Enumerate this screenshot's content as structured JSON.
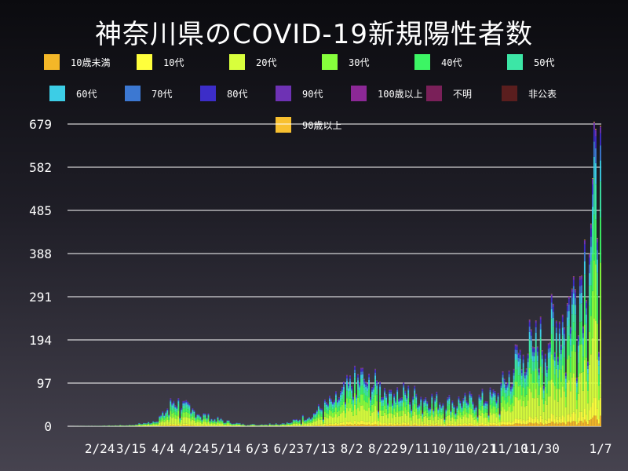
{
  "chart_data": {
    "type": "bar",
    "stacked": true,
    "title": "神奈川県のCOVID-19新規陽性者数",
    "xlabel": "",
    "ylabel": "",
    "ylim": [
      0,
      679
    ],
    "yticks": [
      0,
      97,
      194,
      291,
      388,
      485,
      582,
      679
    ],
    "xtick_labels": [
      "2/24",
      "3/15",
      "4/4",
      "4/24",
      "5/14",
      "6/3",
      "6/23",
      "7/13",
      "8/2",
      "8/22",
      "9/11",
      "10/1",
      "10/21",
      "11/10",
      "11/30",
      "1/7"
    ],
    "date_range": [
      "2020-02-04",
      "2021-01-07"
    ],
    "grid": "horizontal",
    "legend_placement": "top",
    "series": [
      {
        "name": "10歳未満",
        "color": "#f4b728"
      },
      {
        "name": "10代",
        "color": "#ffff3c"
      },
      {
        "name": "20代",
        "color": "#d8ff3c"
      },
      {
        "name": "30代",
        "color": "#86ff3c"
      },
      {
        "name": "40代",
        "color": "#3cf564"
      },
      {
        "name": "50代",
        "color": "#3ce6a6"
      },
      {
        "name": "60代",
        "color": "#3ccde6"
      },
      {
        "name": "70代",
        "color": "#3c78d2"
      },
      {
        "name": "80代",
        "color": "#3c2dc8"
      },
      {
        "name": "90代",
        "color": "#6e32b4"
      },
      {
        "name": "100歳以上",
        "color": "#8c2896"
      },
      {
        "name": "不明",
        "color": "#7a2059"
      },
      {
        "name": "非公表",
        "color": "#5a1e1e"
      },
      {
        "name": "90歳以上",
        "color": "#f8c030"
      }
    ],
    "daily_totals_approx": {
      "note_keys": [
        "date",
        "total"
      ],
      "anchors": [
        [
          "2020-02-04",
          0
        ],
        [
          "2020-02-24",
          1
        ],
        [
          "2020-03-15",
          3
        ],
        [
          "2020-03-28",
          10
        ],
        [
          "2020-04-04",
          25
        ],
        [
          "2020-04-11",
          60
        ],
        [
          "2020-04-18",
          45
        ],
        [
          "2020-04-24",
          35
        ],
        [
          "2020-05-04",
          20
        ],
        [
          "2020-05-14",
          12
        ],
        [
          "2020-05-24",
          5
        ],
        [
          "2020-06-03",
          4
        ],
        [
          "2020-06-23",
          8
        ],
        [
          "2020-07-06",
          25
        ],
        [
          "2020-07-13",
          40
        ],
        [
          "2020-07-25",
          65
        ],
        [
          "2020-08-02",
          95
        ],
        [
          "2020-08-08",
          110
        ],
        [
          "2020-08-22",
          85
        ],
        [
          "2020-09-11",
          70
        ],
        [
          "2020-10-01",
          55
        ],
        [
          "2020-10-21",
          60
        ],
        [
          "2020-11-03",
          70
        ],
        [
          "2020-11-10",
          120
        ],
        [
          "2020-11-18",
          175
        ],
        [
          "2020-11-30",
          190
        ],
        [
          "2020-12-10",
          230
        ],
        [
          "2020-12-20",
          290
        ],
        [
          "2020-12-27",
          360
        ],
        [
          "2021-01-01",
          480
        ],
        [
          "2021-01-04",
          520
        ],
        [
          "2021-01-07",
          660
        ]
      ]
    }
  }
}
